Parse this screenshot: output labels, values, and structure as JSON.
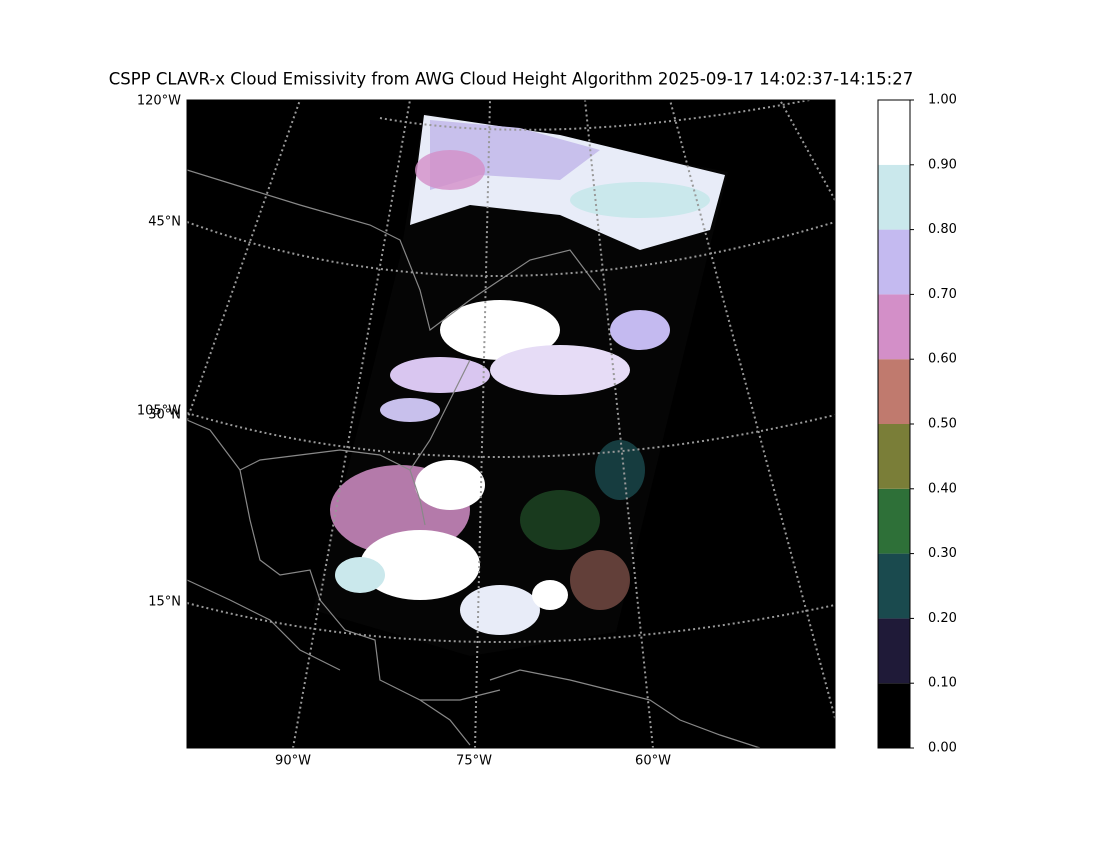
{
  "title": "CSPP CLAVR-x Cloud Emissivity from AWG Cloud Height Algorithm 2025-09-17 14:02:37-14:15:27",
  "map": {
    "lat_labels": [
      "45°N",
      "30°N",
      "15°N"
    ],
    "lon_labels_left": [
      "120°W",
      "105°W"
    ],
    "lon_labels_bottom": [
      "90°W",
      "75°W",
      "60°W"
    ]
  },
  "colorbar": {
    "range": [
      0,
      1
    ],
    "ticks": [
      {
        "value": 0,
        "label": "0.00"
      },
      {
        "value": 0.1,
        "label": "0.10"
      },
      {
        "value": 0.2,
        "label": "0.20"
      },
      {
        "value": 0.3,
        "label": "0.30"
      },
      {
        "value": 0.4,
        "label": "0.40"
      },
      {
        "value": 0.5,
        "label": "0.50"
      },
      {
        "value": 0.6,
        "label": "0.60"
      },
      {
        "value": 0.7,
        "label": "0.70"
      },
      {
        "value": 0.8,
        "label": "0.80"
      },
      {
        "value": 0.9,
        "label": "0.90"
      },
      {
        "value": 1,
        "label": "1.00"
      }
    ],
    "colors": [
      "#000000",
      "#1f1a38",
      "#1a4a4e",
      "#2e7038",
      "#7a7e38",
      "#c07a6e",
      "#d38fc8",
      "#c4baf0",
      "#cae8ec",
      "#ffffff"
    ]
  }
}
